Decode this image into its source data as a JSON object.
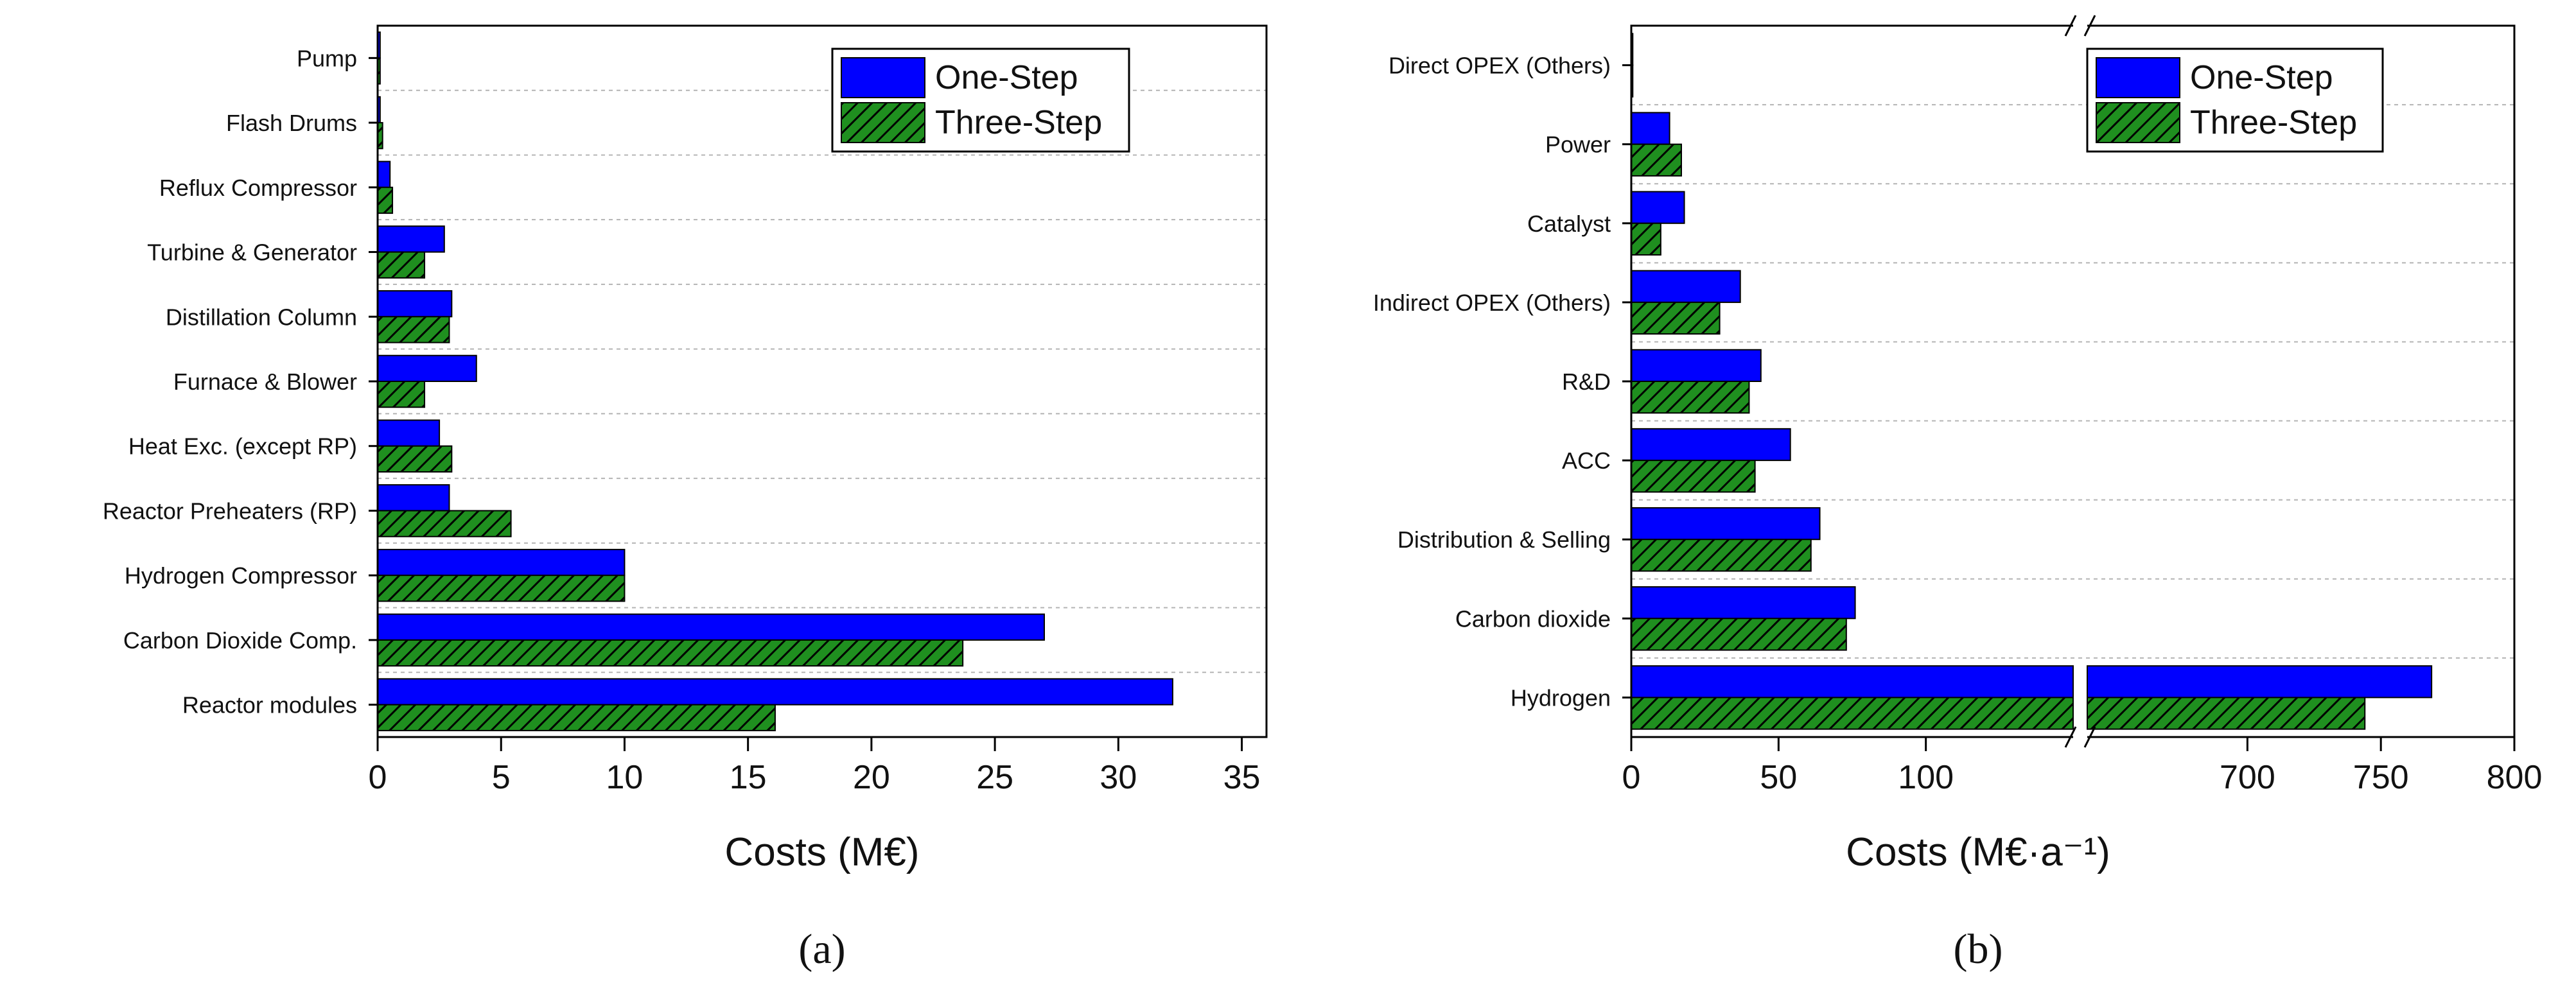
{
  "colors": {
    "one_step": "#0000ff",
    "three_step": "#1f8f1f",
    "hatch": "#000000",
    "grid": "#b4b4b4",
    "axis": "#000000"
  },
  "chart_data": [
    {
      "type": "bar",
      "orientation": "horizontal",
      "panel_label": "(a)",
      "title": "",
      "xlabel": "Costs (M€)",
      "ylabel": "",
      "xlim": [
        0,
        36
      ],
      "xticks": [
        0,
        5,
        10,
        15,
        20,
        25,
        30,
        35
      ],
      "grid": true,
      "legend_position": "top-right",
      "categories": [
        "Pump",
        "Flash Drums",
        "Reflux Compressor",
        "Turbine & Generator",
        "Distillation Column",
        "Furnace & Blower",
        "Heat Exc. (except RP)",
        "Reactor Preheaters (RP)",
        "Hydrogen Compressor",
        "Carbon Dioxide Comp.",
        "Reactor modules"
      ],
      "series": [
        {
          "name": "One-Step",
          "values": [
            0.1,
            0.1,
            0.5,
            2.7,
            3.0,
            4.0,
            2.5,
            2.9,
            10.0,
            27.0,
            32.2
          ]
        },
        {
          "name": "Three-Step",
          "values": [
            0.1,
            0.2,
            0.6,
            1.9,
            2.9,
            1.9,
            3.0,
            5.4,
            10.0,
            23.7,
            16.1
          ]
        }
      ]
    },
    {
      "type": "bar",
      "orientation": "horizontal",
      "panel_label": "(b)",
      "title": "",
      "xlabel": "Costs (M€·a⁻¹)",
      "ylabel": "",
      "xlim": [
        0,
        800
      ],
      "axis_break": {
        "from": 150,
        "to": 640
      },
      "xticks": [
        0,
        50,
        100,
        700,
        750,
        800
      ],
      "grid": true,
      "legend_position": "top-right",
      "categories": [
        "Direct OPEX (Others)",
        "Power",
        "Catalyst",
        "Indirect OPEX (Others)",
        "R&D",
        "ACC",
        "Distribution & Selling",
        "Carbon dioxide",
        "Hydrogen"
      ],
      "series": [
        {
          "name": "One-Step",
          "values": [
            0.5,
            13,
            18,
            37,
            44,
            54,
            64,
            76,
            769
          ]
        },
        {
          "name": "Three-Step",
          "values": [
            0.5,
            17,
            10,
            30,
            40,
            42,
            61,
            73,
            744
          ]
        }
      ]
    }
  ]
}
